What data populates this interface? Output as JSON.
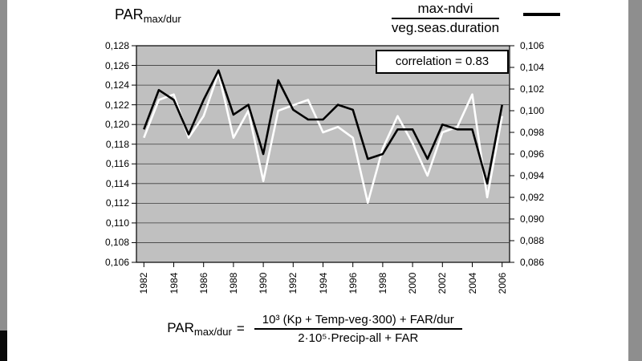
{
  "page": {
    "title_main": "PAR",
    "title_sub": "max/dur"
  },
  "legend": {
    "numerator": "max-ndvi",
    "denominator": "veg.seas.duration"
  },
  "annotation": {
    "correlation_label": "correlation = 0.83"
  },
  "formula": {
    "lhs_main": "PAR",
    "lhs_sub": "max/dur",
    "equals": "=",
    "numerator": "10³ (Kp + Temp-veg·300) + FAR/dur",
    "denominator": "2·10⁵·Precip-all + FAR"
  },
  "colors": {
    "plot_bg": "#c0c0c0",
    "gridline": "#3c3c3c",
    "series_par": "#000000",
    "series_ndvi": "#ffffff",
    "side_band": "#8e8e8e"
  },
  "chart_data": {
    "type": "line",
    "title": "PAR max/dur vs max-ndvi / veg.seas.duration",
    "grid": "on",
    "legend_position": "top",
    "correlation": 0.83,
    "decimal_separator": ",",
    "x": [
      1982,
      1983,
      1984,
      1985,
      1986,
      1987,
      1988,
      1989,
      1990,
      1991,
      1992,
      1993,
      1994,
      1995,
      1996,
      1997,
      1998,
      1999,
      2000,
      2001,
      2002,
      2003,
      2004,
      2005,
      2006
    ],
    "x_tick_labels": [
      "1982",
      "1984",
      "1986",
      "1988",
      "1990",
      "1992",
      "1994",
      "1996",
      "1998",
      "2000",
      "2002",
      "2004",
      "2006"
    ],
    "left_axis": {
      "label": "PAR max/dur",
      "min": 0.106,
      "max": 0.128,
      "step": 0.002,
      "tick_labels": [
        "0,128",
        "0,126",
        "0,124",
        "0,122",
        "0,120",
        "0,118",
        "0,116",
        "0,114",
        "0,112",
        "0,110",
        "0,108",
        "0,106"
      ]
    },
    "right_axis": {
      "label": "max-ndvi / veg.seas.duration",
      "min": 0.086,
      "max": 0.106,
      "step": 0.002,
      "tick_labels": [
        "0,106",
        "0,104",
        "0,102",
        "0,100",
        "0,098",
        "0,096",
        "0,094",
        "0,092",
        "0,090",
        "0,088",
        "0,086"
      ]
    },
    "series": [
      {
        "name": "PAR max/dur",
        "axis": "left",
        "color": "#000000",
        "values": [
          0.1195,
          0.1235,
          0.1225,
          0.119,
          0.1225,
          0.1255,
          0.121,
          0.122,
          0.117,
          0.1245,
          0.1215,
          0.1205,
          0.1205,
          0.122,
          0.1215,
          0.1165,
          0.117,
          0.1195,
          0.1195,
          0.1165,
          0.12,
          0.1195,
          0.1195,
          0.114,
          0.122
        ]
      },
      {
        "name": "max-ndvi / veg.seas.duration",
        "axis": "right",
        "color": "#ffffff",
        "values": [
          0.0975,
          0.101,
          0.1015,
          0.0975,
          0.0995,
          0.1035,
          0.0975,
          0.1,
          0.0935,
          0.1,
          0.1005,
          0.101,
          0.098,
          0.0985,
          0.0975,
          0.0915,
          0.0965,
          0.0995,
          0.097,
          0.094,
          0.098,
          0.0985,
          0.1015,
          0.092,
          0.0995
        ]
      }
    ]
  }
}
